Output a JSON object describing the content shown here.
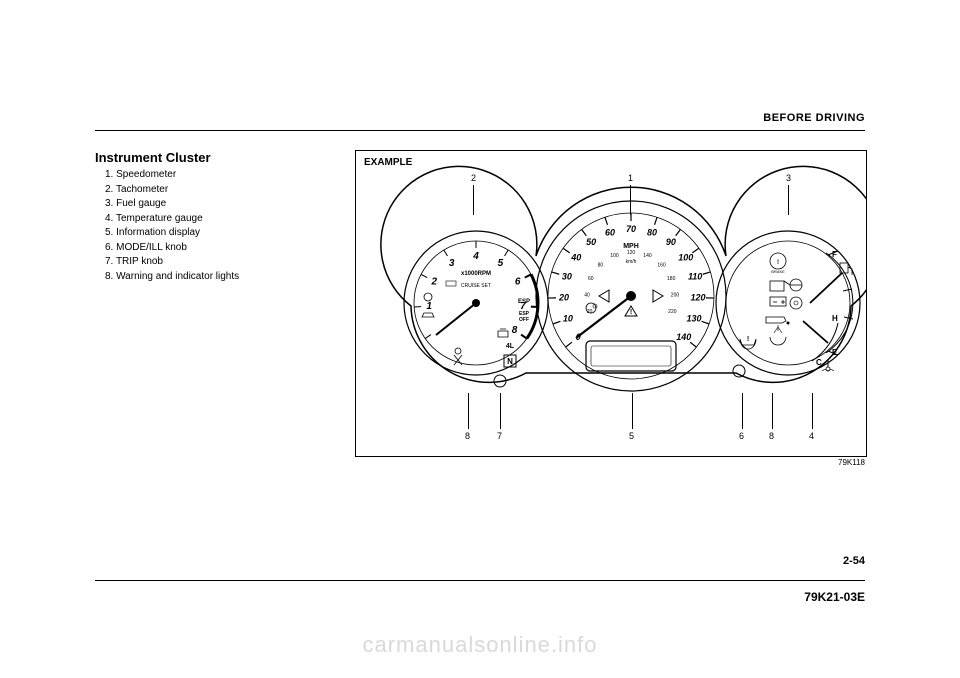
{
  "header": {
    "section": "BEFORE DRIVING"
  },
  "title": "Instrument Cluster",
  "legend": {
    "items": [
      "1. Speedometer",
      "2. Tachometer",
      "3. Fuel gauge",
      "4. Temperature gauge",
      "5. Information display",
      "6. MODE/ILL knob",
      "7. TRIP knob",
      "8. Warning and indicator lights"
    ]
  },
  "figure": {
    "label": "EXAMPLE",
    "code": "79K118",
    "callouts_top": {
      "c1": "1",
      "c2": "2",
      "c3": "3"
    },
    "callouts_bottom": {
      "b4": "4",
      "b5": "5",
      "b6": "6",
      "b7": "7",
      "b8a": "8",
      "b8b": "8"
    },
    "tach": {
      "numbers": [
        "1",
        "2",
        "3",
        "4",
        "5",
        "6",
        "7",
        "8"
      ],
      "label_top": "x1000RPM",
      "cruise": "CRUISE SET",
      "esp": "ESP",
      "esp_off": "ESP\nOFF",
      "four_l": "4L",
      "n": "N"
    },
    "speedo": {
      "outer": [
        "0",
        "10",
        "20",
        "30",
        "40",
        "50",
        "60",
        "70",
        "80",
        "90",
        "100",
        "110",
        "120",
        "130",
        "140"
      ],
      "inner": [
        "20",
        "40",
        "60",
        "80",
        "100",
        "120",
        "140",
        "160",
        "180",
        "200",
        "220"
      ],
      "mph": "MPH",
      "kmh": "km/h"
    },
    "right": {
      "f": "F",
      "e": "E",
      "h": "H",
      "c": "C",
      "brake": "BRAKE"
    }
  },
  "page_number": "2-54",
  "doc_code": "79K21-03E",
  "watermark": "carmanualsonline.info"
}
